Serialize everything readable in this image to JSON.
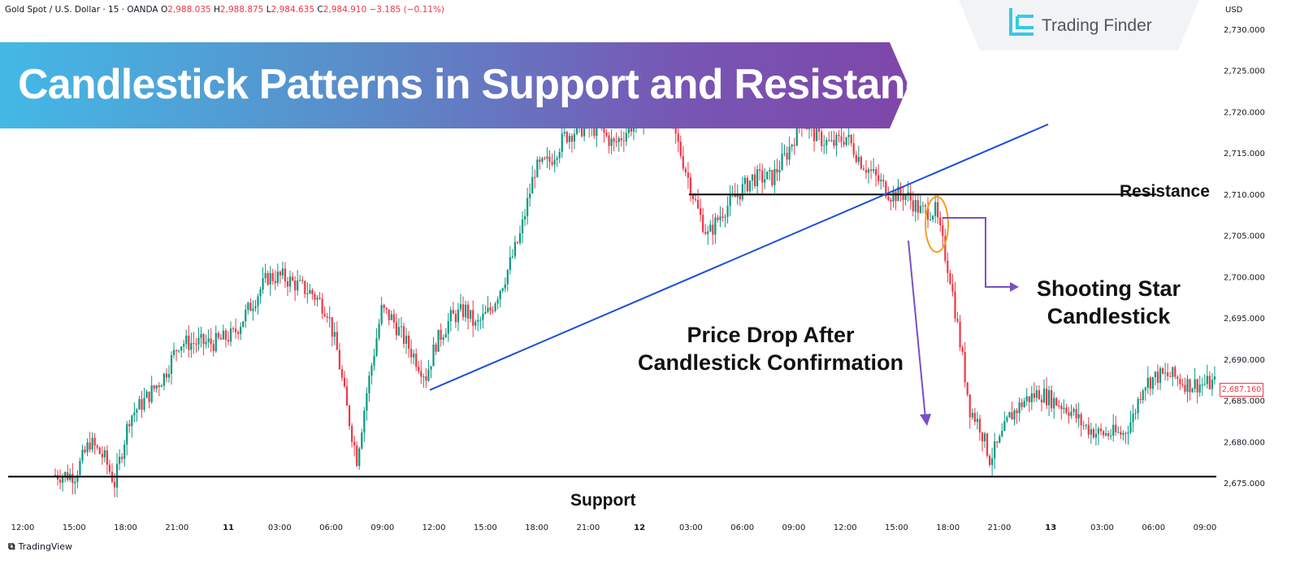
{
  "header": {
    "symbol_line": "Gold Spot / U.S. Dollar · 15 · OANDA",
    "ohlc": [
      {
        "k": "O",
        "v": "2,988.035"
      },
      {
        "k": "H",
        "v": "2,988.875"
      },
      {
        "k": "L",
        "v": "2,984.635"
      },
      {
        "k": "C",
        "v": "2,984.910"
      }
    ],
    "change": "−3.185 (−0.11%)"
  },
  "currency": "USD",
  "banner": {
    "text": "Candlestick Patterns in Support and Resistance"
  },
  "logo": {
    "text": "Trading Finder"
  },
  "annotations": {
    "resistance": "Resistance",
    "support": "Support",
    "shooting_star_line1": "Shooting Star",
    "shooting_star_line2": "Candlestick",
    "price_drop_line1": "Price Drop After",
    "price_drop_line2": "Candlestick Confirmation"
  },
  "price_tag": "2,687.160",
  "footer": {
    "brand": "TradingView"
  },
  "colors": {
    "up": "#089981",
    "down": "#f23645",
    "trendline": "#1e4fd8",
    "level_line": "#000000",
    "arrow": "#7a4fc4",
    "highlight": "#f0a020"
  },
  "chart_data": {
    "type": "candlestick",
    "title": "Candlestick Patterns in Support and Resistance",
    "y_ticks": [
      "2,730.000",
      "2,725.000",
      "2,720.000",
      "2,715.000",
      "2,710.000",
      "2,705.000",
      "2,700.000",
      "2,695.000",
      "2,690.000",
      "2,685.000",
      "2,680.000",
      "2,675.000"
    ],
    "y_tick_values": [
      2730,
      2725,
      2720,
      2715,
      2710,
      2705,
      2700,
      2695,
      2690,
      2685,
      2680,
      2675
    ],
    "x_ticks": [
      "12:00",
      "15:00",
      "18:00",
      "21:00",
      "11",
      "03:00",
      "06:00",
      "09:00",
      "12:00",
      "15:00",
      "18:00",
      "21:00",
      "12",
      "03:00",
      "06:00",
      "09:00",
      "12:00",
      "15:00",
      "18:00",
      "21:00",
      "13",
      "03:00",
      "06:00",
      "09:00"
    ],
    "support_level": 2675.8,
    "resistance_level": 2710.0,
    "last_price": 2687.16,
    "close_path": [
      [
        0,
        2676
      ],
      [
        8,
        2676
      ],
      [
        14,
        2680
      ],
      [
        20,
        2678
      ],
      [
        24,
        2675
      ],
      [
        30,
        2683
      ],
      [
        36,
        2685
      ],
      [
        44,
        2688
      ],
      [
        50,
        2692
      ],
      [
        58,
        2692
      ],
      [
        64,
        2692
      ],
      [
        72,
        2693
      ],
      [
        80,
        2697
      ],
      [
        86,
        2700
      ],
      [
        92,
        2700
      ],
      [
        98,
        2699
      ],
      [
        104,
        2698
      ],
      [
        110,
        2696
      ],
      [
        114,
        2691
      ],
      [
        118,
        2684
      ],
      [
        122,
        2678
      ],
      [
        126,
        2686
      ],
      [
        132,
        2696
      ],
      [
        136,
        2695
      ],
      [
        140,
        2693
      ],
      [
        146,
        2690
      ],
      [
        150,
        2688
      ],
      [
        154,
        2692
      ],
      [
        160,
        2695
      ],
      [
        166,
        2696
      ],
      [
        170,
        2694
      ],
      [
        176,
        2696
      ],
      [
        182,
        2700
      ],
      [
        188,
        2705
      ],
      [
        194,
        2713
      ],
      [
        200,
        2714
      ],
      [
        206,
        2717
      ],
      [
        212,
        2718
      ],
      [
        220,
        2718
      ],
      [
        226,
        2716
      ],
      [
        232,
        2718
      ],
      [
        238,
        2720
      ],
      [
        244,
        2723
      ],
      [
        250,
        2718
      ],
      [
        256,
        2712
      ],
      [
        260,
        2708
      ],
      [
        264,
        2705
      ],
      [
        270,
        2708
      ],
      [
        276,
        2710
      ],
      [
        282,
        2712
      ],
      [
        290,
        2712
      ],
      [
        296,
        2715
      ],
      [
        302,
        2719
      ],
      [
        308,
        2717
      ],
      [
        314,
        2716
      ],
      [
        320,
        2717
      ],
      [
        326,
        2714
      ],
      [
        332,
        2712
      ],
      [
        338,
        2710
      ],
      [
        344,
        2710
      ],
      [
        350,
        2708
      ],
      [
        356,
        2708
      ],
      [
        362,
        2700
      ],
      [
        366,
        2692
      ],
      [
        370,
        2684
      ],
      [
        374,
        2682
      ],
      [
        378,
        2678
      ],
      [
        382,
        2680
      ],
      [
        386,
        2683
      ],
      [
        392,
        2685
      ],
      [
        398,
        2686
      ],
      [
        404,
        2685
      ],
      [
        410,
        2684
      ],
      [
        416,
        2682
      ],
      [
        422,
        2681
      ],
      [
        428,
        2681
      ],
      [
        432,
        2681
      ],
      [
        436,
        2683
      ],
      [
        440,
        2687
      ],
      [
        446,
        2688
      ],
      [
        452,
        2688
      ],
      [
        458,
        2687
      ],
      [
        464,
        2687
      ],
      [
        470,
        2687.16
      ]
    ],
    "trendline": [
      [
        2686.3,
        0
      ],
      [
        2718.5,
        0
      ]
    ]
  }
}
